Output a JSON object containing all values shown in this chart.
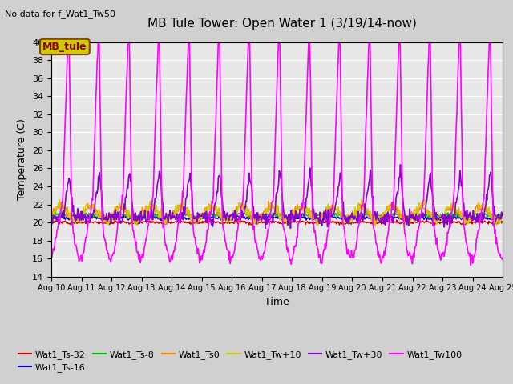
{
  "title": "MB Tule Tower: Open Water 1 (3/19/14-now)",
  "top_left_note": "No data for f_Wat1_Tw50",
  "xlabel": "Time",
  "ylabel": "Temperature (C)",
  "ylim": [
    14,
    40
  ],
  "yticks": [
    14,
    16,
    18,
    20,
    22,
    24,
    26,
    28,
    30,
    32,
    34,
    36,
    38,
    40
  ],
  "xtick_labels": [
    "Aug 10",
    "Aug 11",
    "Aug 12",
    "Aug 13",
    "Aug 14",
    "Aug 15",
    "Aug 16",
    "Aug 17",
    "Aug 18",
    "Aug 19",
    "Aug 20",
    "Aug 21",
    "Aug 22",
    "Aug 23",
    "Aug 24",
    "Aug 25"
  ],
  "colors": {
    "Wat1_Ts-32": "#cc0000",
    "Wat1_Ts-16": "#0000cc",
    "Wat1_Ts-8": "#00bb00",
    "Wat1_Ts0": "#ff8800",
    "Wat1_Tw+10": "#cccc00",
    "Wat1_Tw+30": "#8800cc",
    "Wat1_Tw100": "#ff00ff"
  },
  "legend_order": [
    "Wat1_Ts-32",
    "Wat1_Ts-16",
    "Wat1_Ts-8",
    "Wat1_Ts0",
    "Wat1_Tw+10",
    "Wat1_Tw+30",
    "Wat1_Tw100"
  ],
  "fig_bg": "#d0d0d0",
  "ax_bg": "#e8e8e8",
  "grid_color": "#ffffff",
  "legend_box_label": "MB_tule",
  "legend_box_fc": "#cccc00",
  "legend_box_ec": "#8b4500",
  "legend_box_tc": "#8b0000"
}
